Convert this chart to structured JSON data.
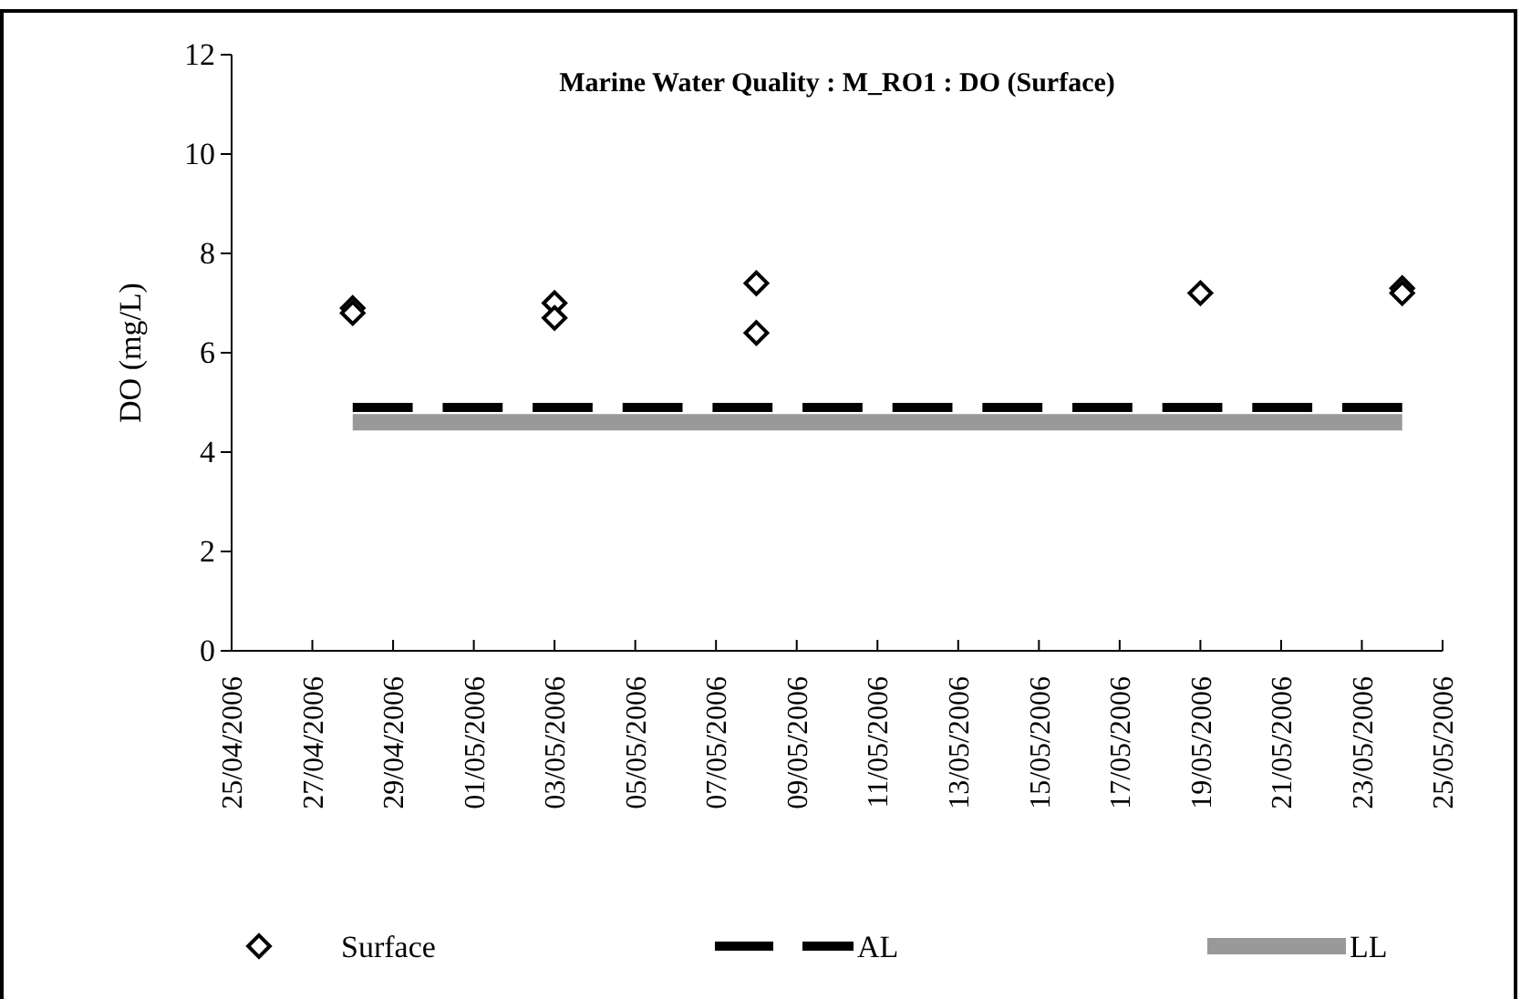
{
  "chart_data": {
    "type": "scatter",
    "title": "Marine Water Quality : M_RO1 : DO (Surface)",
    "ylabel": "DO (mg/L)",
    "xlim": [
      "2006-04-25",
      "2006-05-25"
    ],
    "xticks": [
      {
        "value": "2006-04-25",
        "label": "25/04/2006"
      },
      {
        "value": "2006-04-27",
        "label": "27/04/2006"
      },
      {
        "value": "2006-04-29",
        "label": "29/04/2006"
      },
      {
        "value": "2006-05-01",
        "label": "01/05/2006"
      },
      {
        "value": "2006-05-03",
        "label": "03/05/2006"
      },
      {
        "value": "2006-05-05",
        "label": "05/05/2006"
      },
      {
        "value": "2006-05-07",
        "label": "07/05/2006"
      },
      {
        "value": "2006-05-09",
        "label": "09/05/2006"
      },
      {
        "value": "2006-05-11",
        "label": "11/05/2006"
      },
      {
        "value": "2006-05-13",
        "label": "13/05/2006"
      },
      {
        "value": "2006-05-15",
        "label": "15/05/2006"
      },
      {
        "value": "2006-05-17",
        "label": "17/05/2006"
      },
      {
        "value": "2006-05-19",
        "label": "19/05/2006"
      },
      {
        "value": "2006-05-21",
        "label": "21/05/2006"
      },
      {
        "value": "2006-05-23",
        "label": "23/05/2006"
      },
      {
        "value": "2006-05-25",
        "label": "25/05/2006"
      }
    ],
    "ylim": [
      0,
      12
    ],
    "yticks": [
      0,
      2,
      4,
      6,
      8,
      10,
      12
    ],
    "grid": false,
    "legend": "bottom",
    "series": [
      {
        "name": "Surface",
        "marker": "diamond",
        "color": "#000000",
        "x": [
          "2006-04-28",
          "2006-04-28",
          "2006-05-03",
          "2006-05-03",
          "2006-05-08",
          "2006-05-08",
          "2006-05-19",
          "2006-05-24",
          "2006-05-24"
        ],
        "values": [
          6.9,
          6.8,
          7.0,
          6.7,
          7.4,
          6.4,
          7.2,
          7.3,
          7.2
        ]
      },
      {
        "name": "AL",
        "type": "line",
        "marker": "none",
        "line_style": "dashed",
        "color": "#000000",
        "x": [
          "2006-04-28",
          "2006-05-24"
        ],
        "values": [
          4.9,
          4.9
        ]
      },
      {
        "name": "LL",
        "type": "line",
        "marker": "none",
        "line_style": "solid",
        "color": "#999999",
        "x": [
          "2006-04-28",
          "2006-05-24"
        ],
        "values": [
          4.6,
          4.6
        ]
      }
    ]
  }
}
